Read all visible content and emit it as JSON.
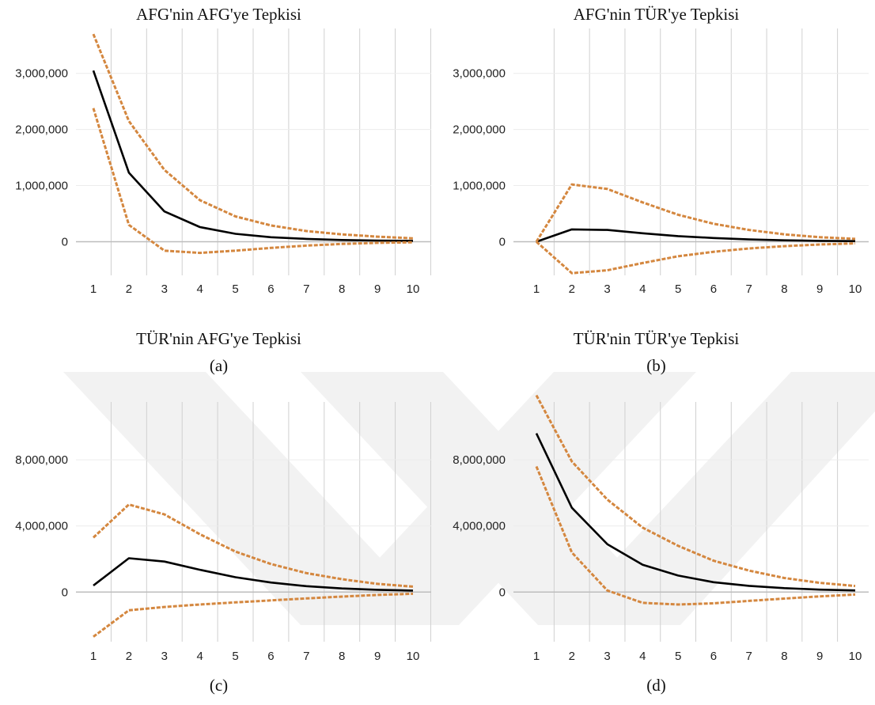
{
  "colors": {
    "irf": "#000000",
    "band": "#d4873f",
    "grid": "#d0d0d0",
    "zero": "#bdbdbd"
  },
  "chart_data": [
    {
      "id": "a",
      "type": "line",
      "title": "AFG'nin AFG'ye Tepkisi",
      "caption": "",
      "x": [
        1,
        2,
        3,
        4,
        5,
        6,
        7,
        8,
        9,
        10
      ],
      "ylim": [
        -600000,
        3800000
      ],
      "yticks": [
        0,
        1000000,
        2000000,
        3000000
      ],
      "ytick_labels": [
        "0",
        "1,000,000",
        "2,000,000",
        "3,000,000"
      ],
      "series": [
        {
          "role": "irf",
          "values": [
            3050000,
            1230000,
            540000,
            260000,
            140000,
            80000,
            50000,
            30000,
            20000,
            15000
          ]
        },
        {
          "role": "upper",
          "values": [
            3700000,
            2150000,
            1280000,
            740000,
            450000,
            290000,
            190000,
            130000,
            90000,
            60000
          ]
        },
        {
          "role": "lower",
          "values": [
            2380000,
            300000,
            -160000,
            -200000,
            -160000,
            -110000,
            -70000,
            -40000,
            -20000,
            -10000
          ]
        }
      ]
    },
    {
      "id": "b",
      "type": "line",
      "title": "AFG'nin TÜR'ye Tepkisi",
      "caption": "(a)",
      "x": [
        1,
        2,
        3,
        4,
        5,
        6,
        7,
        8,
        9,
        10
      ],
      "ylim": [
        -600000,
        3800000
      ],
      "yticks": [
        0,
        1000000,
        2000000,
        3000000
      ],
      "ytick_labels": [
        "0",
        "1,000,000",
        "2,000,000",
        "3,000,000"
      ],
      "series": [
        {
          "role": "irf",
          "values": [
            0,
            220000,
            210000,
            150000,
            100000,
            65000,
            40000,
            25000,
            15000,
            10000
          ]
        },
        {
          "role": "upper",
          "values": [
            0,
            1020000,
            940000,
            700000,
            480000,
            320000,
            210000,
            130000,
            80000,
            50000
          ]
        },
        {
          "role": "lower",
          "values": [
            0,
            -560000,
            -510000,
            -380000,
            -260000,
            -180000,
            -120000,
            -80000,
            -50000,
            -30000
          ]
        }
      ]
    },
    {
      "id": "c",
      "type": "line",
      "title": "TÜR'nin AFG'ye Tepkisi",
      "caption": "(b)",
      "x": [
        1,
        2,
        3,
        4,
        5,
        6,
        7,
        8,
        9,
        10
      ],
      "ylim": [
        -3000000,
        11500000
      ],
      "yticks": [
        0,
        4000000,
        8000000
      ],
      "ytick_labels": [
        "0",
        "4,000,000",
        "8,000,000"
      ],
      "series": [
        {
          "role": "irf",
          "values": [
            400000,
            2050000,
            1850000,
            1350000,
            900000,
            580000,
            360000,
            220000,
            140000,
            90000
          ]
        },
        {
          "role": "upper",
          "values": [
            3300000,
            5300000,
            4700000,
            3500000,
            2450000,
            1700000,
            1150000,
            780000,
            500000,
            330000
          ]
        },
        {
          "role": "lower",
          "values": [
            -2700000,
            -1100000,
            -900000,
            -750000,
            -620000,
            -500000,
            -380000,
            -270000,
            -170000,
            -100000
          ]
        }
      ]
    },
    {
      "id": "d",
      "type": "line",
      "title": "TÜR'nin TÜR'ye Tepkisi",
      "caption": "",
      "x": [
        1,
        2,
        3,
        4,
        5,
        6,
        7,
        8,
        9,
        10
      ],
      "ylim": [
        -3000000,
        11500000
      ],
      "yticks": [
        0,
        4000000,
        8000000
      ],
      "ytick_labels": [
        "0",
        "4,000,000",
        "8,000,000"
      ],
      "series": [
        {
          "role": "irf",
          "values": [
            9600000,
            5100000,
            2900000,
            1650000,
            1000000,
            600000,
            380000,
            240000,
            150000,
            100000
          ]
        },
        {
          "role": "upper",
          "values": [
            11900000,
            7900000,
            5600000,
            3900000,
            2800000,
            1900000,
            1300000,
            850000,
            560000,
            370000
          ]
        },
        {
          "role": "lower",
          "values": [
            7600000,
            2400000,
            100000,
            -650000,
            -750000,
            -680000,
            -530000,
            -390000,
            -260000,
            -150000
          ]
        }
      ]
    }
  ],
  "bottom_captions": [
    "(c)",
    "(d)"
  ]
}
